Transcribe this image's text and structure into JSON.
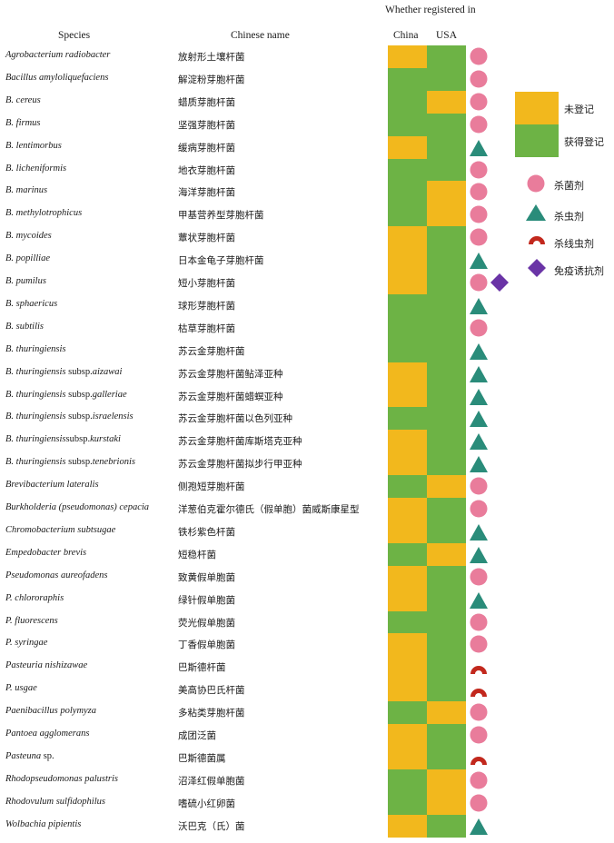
{
  "headers": {
    "species": "Species",
    "chinese": "Chinese name",
    "registered": "Whether registered in",
    "china": "China",
    "usa": "USA"
  },
  "colors": {
    "unregistered": "#f2b81d",
    "registered": "#6db345",
    "fungicide": "#e97c9b",
    "insecticide": "#2a8c7a",
    "nematicide": "#c2281d",
    "immune": "#6a34a6"
  },
  "legend": {
    "unregistered": "未登记",
    "registered": "获得登记",
    "fungicide": "杀菌剂",
    "insecticide": "杀虫剂",
    "nematicide": "杀线虫剂",
    "immune": "免疫诱抗剂"
  },
  "rows": [
    {
      "sp": "Agrobacterium radiobacter",
      "spx": "",
      "cn": "放射形土壤杆菌",
      "china": "unregistered",
      "usa": "registered",
      "icons": [
        "fungicide"
      ]
    },
    {
      "sp": "Bacillus amyloliquefaciens",
      "spx": "",
      "cn": "解淀粉芽胞杆菌",
      "china": "registered",
      "usa": "registered",
      "icons": [
        "fungicide"
      ]
    },
    {
      "sp": "B. cereus",
      "spx": "",
      "cn": "蜡质芽胞杆菌",
      "china": "registered",
      "usa": "unregistered",
      "icons": [
        "fungicide"
      ]
    },
    {
      "sp": "B. firmus",
      "spx": "",
      "cn": "坚强芽胞杆菌",
      "china": "registered",
      "usa": "registered",
      "icons": [
        "fungicide"
      ]
    },
    {
      "sp": "B. lentimorbus",
      "spx": "",
      "cn": "缓病芽胞杆菌",
      "china": "unregistered",
      "usa": "registered",
      "icons": [
        "insecticide"
      ]
    },
    {
      "sp": "B. licheniformis",
      "spx": "",
      "cn": "地衣芽胞杆菌",
      "china": "registered",
      "usa": "registered",
      "icons": [
        "fungicide"
      ]
    },
    {
      "sp": "B. marinus",
      "spx": "",
      "cn": "海洋芽胞杆菌",
      "china": "registered",
      "usa": "unregistered",
      "icons": [
        "fungicide"
      ]
    },
    {
      "sp": "B. methylotrophicus",
      "spx": "",
      "cn": "甲基营养型芽胞杆菌",
      "china": "registered",
      "usa": "unregistered",
      "icons": [
        "fungicide"
      ]
    },
    {
      "sp": "B. mycoides",
      "spx": "",
      "cn": "蕈状芽胞杆菌",
      "china": "unregistered",
      "usa": "registered",
      "icons": [
        "fungicide"
      ]
    },
    {
      "sp": "B. popilliae",
      "spx": "",
      "cn": "日本金龟子芽胞杆菌",
      "china": "unregistered",
      "usa": "registered",
      "icons": [
        "insecticide"
      ]
    },
    {
      "sp": "B. pumilus",
      "spx": "",
      "cn": "短小芽胞杆菌",
      "china": "unregistered",
      "usa": "registered",
      "icons": [
        "fungicide",
        "immune"
      ]
    },
    {
      "sp": "B. sphaericus",
      "spx": "",
      "cn": "球形芽胞杆菌",
      "china": "registered",
      "usa": "registered",
      "icons": [
        "insecticide"
      ]
    },
    {
      "sp": "B. subtilis",
      "spx": "",
      "cn": "枯草芽胞杆菌",
      "china": "registered",
      "usa": "registered",
      "icons": [
        "fungicide"
      ]
    },
    {
      "sp": "B. thuringiensis",
      "spx": "",
      "cn": "苏云金芽胞杆菌",
      "china": "registered",
      "usa": "registered",
      "icons": [
        "insecticide"
      ]
    },
    {
      "sp": "B. thuringiensis",
      "spx": " subsp.",
      "sp2": "aizawai",
      "cn": "苏云金芽胞杆菌鲇泽亚种",
      "china": "unregistered",
      "usa": "registered",
      "icons": [
        "insecticide"
      ]
    },
    {
      "sp": "B. thuringiensis",
      "spx": " subsp.",
      "sp2": "galleriae",
      "cn": "苏云金芽胞杆菌蜡螟亚种",
      "china": "unregistered",
      "usa": "registered",
      "icons": [
        "insecticide"
      ]
    },
    {
      "sp": "B. thuringiensis",
      "spx": " subsp.",
      "sp2": "israelensis",
      "cn": "苏云金芽胞杆菌以色列亚种",
      "china": "registered",
      "usa": "registered",
      "icons": [
        "insecticide"
      ]
    },
    {
      "sp": "B. thuringiensis",
      "spx": "subsp.",
      "sp2": "kurstaki",
      "cn": "苏云金芽胞杆菌库斯塔克亚种",
      "china": "unregistered",
      "usa": "registered",
      "icons": [
        "insecticide"
      ]
    },
    {
      "sp": "B. thuringiensis",
      "spx": " subsp.",
      "sp2": "tenebrionis",
      "cn": "苏云金芽胞杆菌拟步行甲亚种",
      "china": "unregistered",
      "usa": "registered",
      "icons": [
        "insecticide"
      ]
    },
    {
      "sp": "Brevibacterium lateralis",
      "spx": "",
      "cn": "侧孢短芽胞杆菌",
      "china": "registered",
      "usa": "unregistered",
      "icons": [
        "fungicide"
      ]
    },
    {
      "sp": "Burkholderia (pseudomonas) cepacia",
      "spx": "",
      "cn": "洋葱伯克霍尔德氏（假单胞）菌威斯康星型",
      "china": "unregistered",
      "usa": "registered",
      "icons": [
        "fungicide"
      ]
    },
    {
      "sp": "Chromobacterium subtsugae",
      "spx": "",
      "cn": "铁杉紫色杆菌",
      "china": "unregistered",
      "usa": "registered",
      "icons": [
        "insecticide"
      ]
    },
    {
      "sp": "Empedobacter brevis",
      "spx": "",
      "cn": "短稳杆菌",
      "china": "registered",
      "usa": "unregistered",
      "icons": [
        "insecticide"
      ]
    },
    {
      "sp": "Pseudomonas aureofadens",
      "spx": "",
      "cn": "致黄假单胞菌",
      "china": "unregistered",
      "usa": "registered",
      "icons": [
        "fungicide"
      ]
    },
    {
      "sp": "P. chlororaphis",
      "spx": "",
      "cn": "绿针假单胞菌",
      "china": "unregistered",
      "usa": "registered",
      "icons": [
        "insecticide"
      ]
    },
    {
      "sp": "P. fluorescens",
      "spx": "",
      "cn": "荧光假单胞菌",
      "china": "registered",
      "usa": "registered",
      "icons": [
        "fungicide"
      ]
    },
    {
      "sp": "P. syringae",
      "spx": "",
      "cn": "丁香假单胞菌",
      "china": "unregistered",
      "usa": "registered",
      "icons": [
        "fungicide"
      ]
    },
    {
      "sp": "Pasteuria nishizawae",
      "spx": "",
      "cn": "巴斯德杆菌",
      "china": "unregistered",
      "usa": "registered",
      "icons": [
        "nematicide"
      ]
    },
    {
      "sp": "P.  usgae",
      "spx": "",
      "cn": "美高协巴氏杆菌",
      "china": "unregistered",
      "usa": "registered",
      "icons": [
        "nematicide"
      ]
    },
    {
      "sp": "Paenibacillus polymyza",
      "spx": "",
      "cn": "多粘类芽胞杆菌",
      "china": "registered",
      "usa": "unregistered",
      "icons": [
        "fungicide"
      ]
    },
    {
      "sp": "Pantoea agglomerans",
      "spx": "",
      "cn": "成团泛菌",
      "china": "unregistered",
      "usa": "registered",
      "icons": [
        "fungicide"
      ]
    },
    {
      "sp": "Pasteuna",
      "spx": " sp.",
      "cn": "巴斯德菌属",
      "china": "unregistered",
      "usa": "registered",
      "icons": [
        "nematicide"
      ]
    },
    {
      "sp": "Rhodopseudomonas palustris",
      "spx": "",
      "cn": "沼泽红假单胞菌",
      "china": "registered",
      "usa": "unregistered",
      "icons": [
        "fungicide"
      ]
    },
    {
      "sp": "Rhodovulum sulfidophilus",
      "spx": "",
      "cn": "嗜硫小红卵菌",
      "china": "registered",
      "usa": "unregistered",
      "icons": [
        "fungicide"
      ]
    },
    {
      "sp": "Wolbachia pipientis",
      "spx": "",
      "cn": "沃巴克（氏）菌",
      "china": "unregistered",
      "usa": "registered",
      "icons": [
        "insecticide"
      ]
    }
  ]
}
